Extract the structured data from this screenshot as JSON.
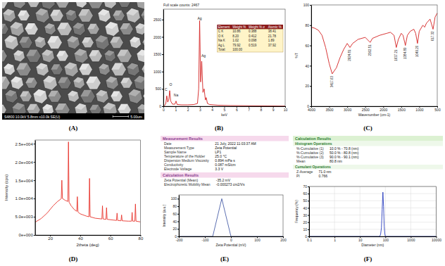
{
  "chart_data": [
    {
      "type": "image",
      "panel_label": "(A)",
      "annotations": [
        "S4800 10.0kV 5.8mm x10.0k SE(U)",
        "5.00um"
      ]
    },
    {
      "type": "line",
      "panel_label": "(B)",
      "title": "Full scale counts: 2467",
      "x_label": "keV",
      "xlim": [
        0,
        10
      ],
      "xticks": [
        0,
        1,
        2,
        3,
        4,
        5,
        6,
        7,
        8,
        9,
        10
      ],
      "ylim": [
        0,
        2800
      ],
      "yticks": [
        0,
        500,
        1000,
        1500,
        2000,
        2500
      ],
      "x": [
        0,
        0.1,
        0.2,
        0.28,
        0.36,
        0.45,
        0.52,
        0.6,
        0.75,
        0.95,
        1.04,
        1.13,
        1.5,
        2.0,
        2.5,
        2.8,
        2.9,
        2.98,
        3.06,
        3.15,
        3.25,
        3.35,
        3.45,
        3.52,
        3.62,
        3.8,
        4.5,
        5.5,
        7,
        8.5,
        10
      ],
      "values": [
        0,
        20,
        80,
        300,
        120,
        200,
        450,
        150,
        60,
        60,
        150,
        50,
        40,
        40,
        50,
        80,
        500,
        2467,
        700,
        1300,
        400,
        500,
        180,
        250,
        80,
        50,
        30,
        20,
        15,
        10,
        5
      ],
      "color": "#d42020",
      "annotations": [
        {
          "text": "C",
          "x": 0.22,
          "y": 420
        },
        {
          "text": "O",
          "x": 0.6,
          "y": 560
        },
        {
          "text": "Na",
          "x": 1.04,
          "y": 260
        },
        {
          "text": "Ag",
          "x": 2.98,
          "y": 2467
        },
        {
          "text": "Ag",
          "x": 3.3,
          "y": 1400
        }
      ],
      "table": {
        "columns": [
          "Element",
          "Weight %",
          "Weight % σ",
          "Atomic %"
        ],
        "rows": [
          [
            "C K",
            "10.86",
            "0.388",
            "38.41"
          ],
          [
            "O K",
            "8.20",
            "0.412",
            "21.78"
          ],
          [
            "Na K",
            "1.02",
            "0.098",
            "1.89"
          ],
          [
            "Ag L",
            "79.92",
            "0.519",
            "37.92"
          ],
          [
            "Total:",
            "100.00"
          ]
        ]
      }
    },
    {
      "type": "line",
      "panel_label": "(C)",
      "x_label": "Wavenumber (cm-1)",
      "y_label": "%T",
      "xlim": [
        4000,
        500
      ],
      "xticks": [
        4000,
        3500,
        3000,
        2500,
        2000,
        1500,
        1000,
        500
      ],
      "ylim": [
        0,
        100
      ],
      "yticks": [
        0,
        20,
        40,
        60,
        80,
        100
      ],
      "x": [
        4000,
        3900,
        3800,
        3700,
        3600,
        3500,
        3417.63,
        3300,
        3200,
        3100,
        3000,
        2924.81,
        2850,
        2700,
        2500,
        2362.51,
        2300,
        2100,
        1900,
        1800,
        1700,
        1637.21,
        1580,
        1500,
        1450,
        1384.89,
        1330,
        1250,
        1150,
        1100,
        1049.2,
        1000,
        900,
        850,
        800,
        700,
        617.32,
        560,
        500
      ],
      "values": [
        78,
        77,
        75,
        70,
        58,
        42,
        32,
        38,
        48,
        56,
        62,
        58,
        62,
        66,
        68,
        63,
        67,
        70,
        72,
        73,
        70,
        58,
        66,
        72,
        70,
        60,
        70,
        74,
        76,
        72,
        62,
        74,
        80,
        78,
        82,
        86,
        76,
        88,
        92
      ],
      "color": "#d42020",
      "annotations": [
        {
          "text": "3417.63",
          "x": 3417.63,
          "y": 32
        },
        {
          "text": "2924.81",
          "x": 2924.81,
          "y": 58
        },
        {
          "text": "2362.51",
          "x": 2362.51,
          "y": 63
        },
        {
          "text": "1637.21",
          "x": 1637.21,
          "y": 58
        },
        {
          "text": "1384.89",
          "x": 1384.89,
          "y": 60
        },
        {
          "text": "1049.20",
          "x": 1049.2,
          "y": 62
        },
        {
          "text": "617.32",
          "x": 617.32,
          "y": 76
        }
      ]
    },
    {
      "type": "line",
      "panel_label": "(D)",
      "x_label": "2theta (deg)",
      "y_label": "Intensity (cps)",
      "xlim": [
        10,
        80
      ],
      "xticks": [
        20,
        40,
        60,
        80
      ],
      "ylim": [
        0,
        26000
      ],
      "yticks": [
        {
          "value": 0,
          "label": "0e+000"
        },
        {
          "value": 5000,
          "label": "5.0e+003"
        },
        {
          "value": 10000,
          "label": "1.0e+004"
        },
        {
          "value": 15000,
          "label": "1.5e+004"
        },
        {
          "value": 20000,
          "label": "2.0e+004"
        },
        {
          "value": 25000,
          "label": "2.5e+004"
        }
      ],
      "x": [
        10,
        14,
        18,
        22,
        25,
        27,
        27.4,
        27.8,
        28.2,
        30,
        31.8,
        32.2,
        32.6,
        34,
        36,
        37.7,
        38.1,
        38.5,
        40,
        44,
        45.8,
        46.2,
        46.6,
        50,
        54.4,
        54.8,
        55.2,
        57.1,
        57.5,
        57.9,
        62,
        64.1,
        64.5,
        64.9,
        67.1,
        67.5,
        67.9,
        72,
        74.1,
        74.5,
        74.9,
        76.3,
        76.7,
        77.1,
        80
      ],
      "values": [
        3500,
        4500,
        6000,
        8000,
        9200,
        9800,
        10000,
        15000,
        10000,
        9500,
        9200,
        25500,
        9000,
        8000,
        7000,
        6500,
        10500,
        6300,
        5800,
        5200,
        5000,
        15500,
        5000,
        4600,
        4400,
        8000,
        4400,
        4300,
        7500,
        4300,
        4100,
        4000,
        6000,
        4000,
        3900,
        5500,
        3900,
        3800,
        3800,
        6200,
        3800,
        3800,
        8500,
        3800,
        3600
      ],
      "color": "#e8342c"
    },
    {
      "type": "line",
      "panel_label": "(E)",
      "x_label": "Zeta Potential (mV)",
      "y_label": "Intensity (a.u.)",
      "info": [
        {
          "title": "Measurement Results",
          "rows": [
            [
              "Date",
              "21 July, 2022 11:03:37 AM"
            ],
            [
              "Measurement Type",
              "Zeta Potential"
            ],
            [
              "Sample Name",
              "LP1"
            ],
            [
              "Temperature of the Holder",
              "25.0 °C"
            ],
            [
              "Dispersion Medium Viscosity",
              "0.894 mPa·s"
            ],
            [
              "Conductivity",
              "0.087 mS/cm"
            ],
            [
              "Electrode Voltage",
              "3.3 V"
            ]
          ]
        },
        {
          "title": "Calculation Results",
          "rows": [
            [
              "Zeta Potential (Mean)",
              "-35.2 mV"
            ],
            [
              "Electrophoretic Mobility Mean",
              "-0.000273 cm2/Vs"
            ]
          ]
        }
      ],
      "xlim": [
        -200,
        200
      ],
      "xticks": [
        -200,
        -100,
        0,
        100,
        200
      ],
      "ylim": [
        0,
        110
      ],
      "yticks": [
        0,
        20,
        40,
        60,
        80,
        100
      ],
      "x": [
        -200,
        -70,
        -35.2,
        0,
        200
      ],
      "values": [
        0,
        0,
        100,
        0,
        0
      ],
      "color": "#4a5fa8"
    },
    {
      "type": "line",
      "panel_label": "(F)",
      "x_label": "Diameter (nm)",
      "y_label": "Frequency (%)",
      "info": [
        {
          "title": "Calculation Results",
          "subtitle": "Histogram Operations",
          "rows": [
            [
              "%-Cumulative (1)",
              "10.0 % - 70.8 (nm)"
            ],
            [
              "%-Cumulative (2)",
              "50.0 % - 80.8 (nm)"
            ],
            [
              "%-Cumulative (3)",
              "90.0 % - 90.1 (nm)"
            ],
            [
              "Mean",
              "80.8 nm"
            ]
          ]
        },
        {
          "subtitle": "Cumulant Operations",
          "rows": [
            [
              "Z-Average",
              "71.0 nm"
            ],
            [
              "PI",
              "0.766"
            ]
          ]
        }
      ],
      "log": "x",
      "grid": true,
      "xlim": [
        0.1,
        10000
      ],
      "xticks": [
        0.1,
        1,
        10,
        100,
        1000,
        10000
      ],
      "ylim": [
        0,
        70
      ],
      "yticks": [
        0,
        10,
        20,
        30,
        40,
        50,
        60,
        70
      ],
      "x": [
        0.1,
        50,
        60,
        65,
        70,
        75,
        80,
        85,
        90,
        95,
        100,
        110,
        10000
      ],
      "values": [
        0,
        0,
        0,
        3,
        12,
        38,
        62,
        42,
        14,
        4,
        0,
        0,
        0
      ],
      "color": "#2b3fbf"
    }
  ]
}
